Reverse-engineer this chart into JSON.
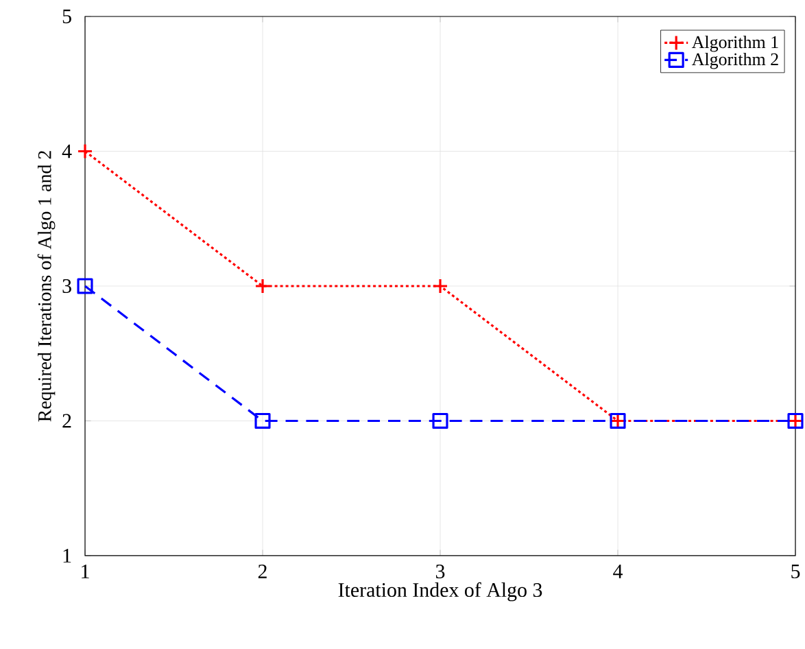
{
  "chart_data": {
    "type": "line",
    "xlabel": "Iteration Index of Algo 3",
    "ylabel": "Required Iterations of Algo 1 and 2",
    "x": [
      1,
      2,
      3,
      4,
      5
    ],
    "series": [
      {
        "name": "Algorithm 1",
        "color": "#ff0000",
        "values": [
          4,
          3,
          3,
          2,
          2
        ],
        "marker": "cross",
        "line_style": "dotted"
      },
      {
        "name": "Algorithm 2",
        "color": "#0000ff",
        "values": [
          3,
          2,
          2,
          2,
          2
        ],
        "marker": "square",
        "line_style": "dashed"
      }
    ],
    "xlim": [
      1,
      5
    ],
    "ylim": [
      1,
      5
    ],
    "xticks": [
      1,
      2,
      3,
      4,
      5
    ],
    "yticks": [
      1,
      2,
      3,
      4,
      5
    ],
    "grid": true,
    "legend": "top right"
  }
}
